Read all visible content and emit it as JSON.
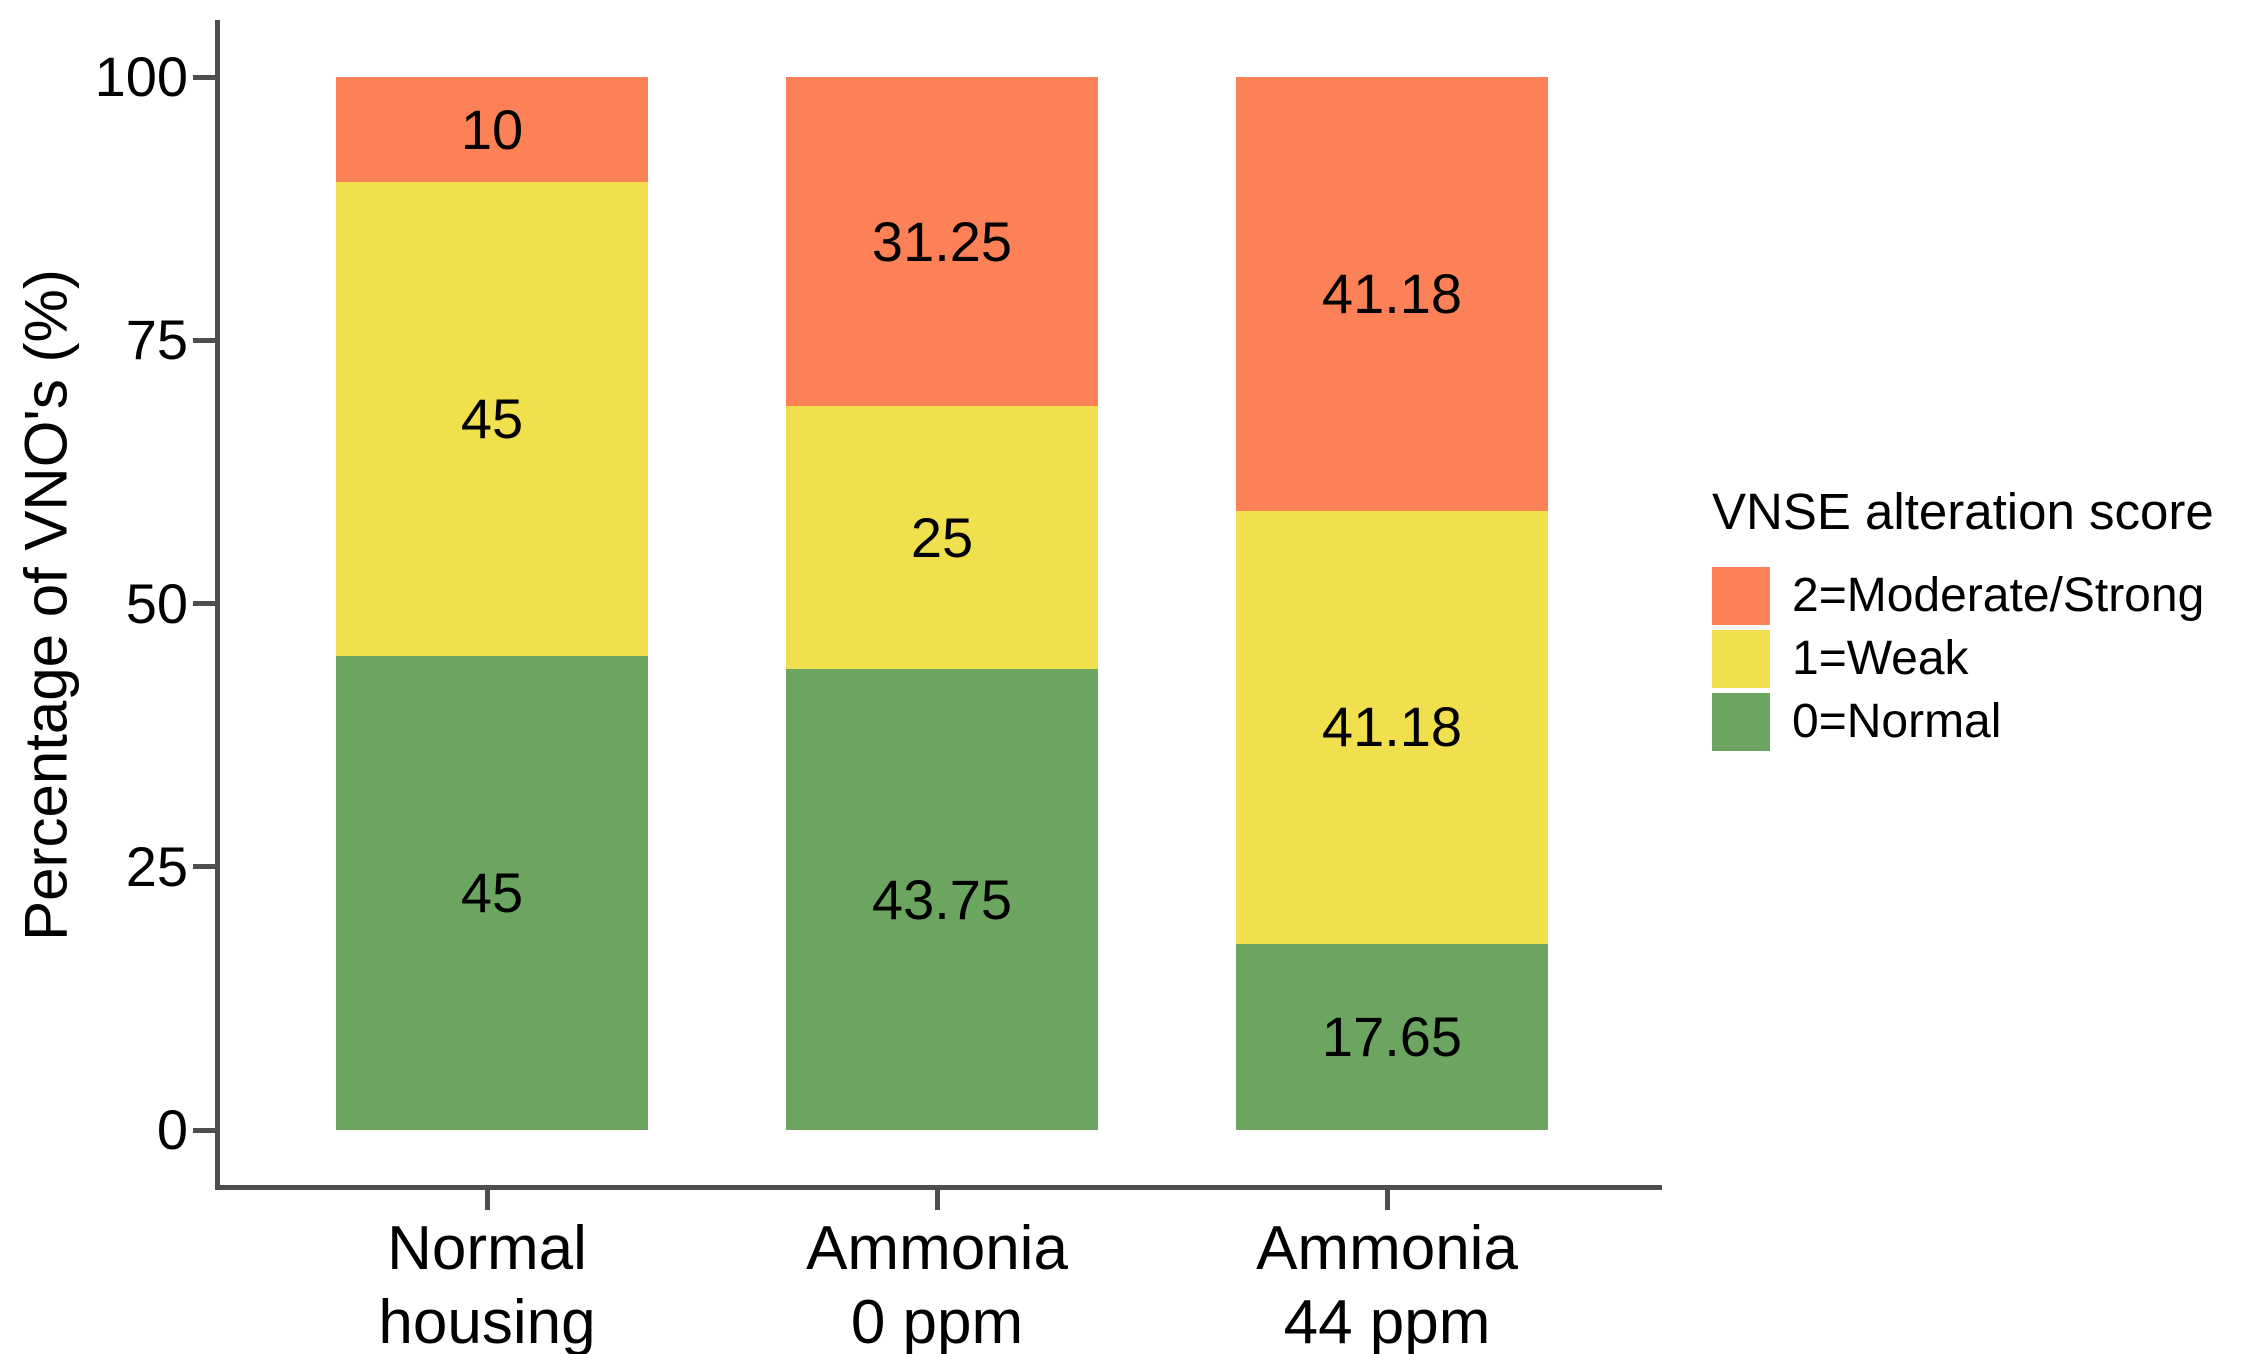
{
  "chart_data": {
    "type": "bar",
    "subtype": "stacked-percentage",
    "title": "",
    "categories": [
      {
        "lines": [
          "Normal",
          "housing"
        ]
      },
      {
        "lines": [
          "Ammonia",
          "0 ppm"
        ]
      },
      {
        "lines": [
          "Ammonia",
          "44 ppm"
        ]
      }
    ],
    "series": [
      {
        "name": "0=Normal",
        "color": "#6CA55F",
        "values": [
          45,
          43.75,
          17.65
        ]
      },
      {
        "name": "1=Weak",
        "color": "#F0E04E",
        "values": [
          45,
          25,
          41.18
        ]
      },
      {
        "name": "2=Moderate/Strong",
        "color": "#FD8156",
        "values": [
          10,
          31.25,
          41.18
        ]
      }
    ],
    "stack_order_bottom_to_top": [
      "0=Normal",
      "1=Weak",
      "2=Moderate/Strong"
    ],
    "value_labels_shown": true,
    "xlabel": "",
    "ylabel": "Percentage of VNO's (%)",
    "ylim": [
      0,
      100
    ],
    "yticks": [
      0,
      25,
      50,
      75,
      100
    ],
    "grid": "off",
    "legend": {
      "title": "VNSE alteration score",
      "position": "right",
      "entries": [
        {
          "label": "2=Moderate/Strong",
          "color": "#FD8156"
        },
        {
          "label": "1=Weak",
          "color": "#F0E04E"
        },
        {
          "label": "0=Normal",
          "color": "#6CA55F"
        }
      ]
    },
    "axis_color": "#4d4d4d",
    "text_color": "#000000",
    "background_color": "#ffffff"
  }
}
